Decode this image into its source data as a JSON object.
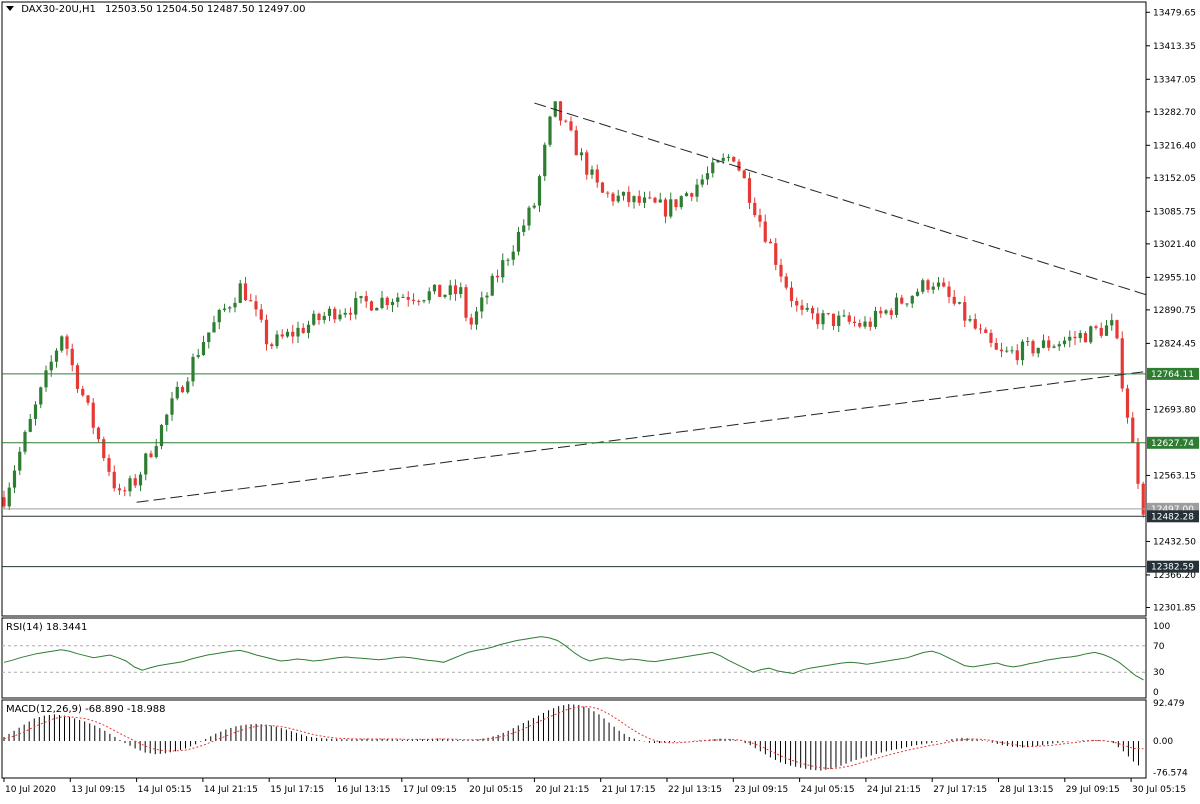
{
  "header": {
    "symbol": "DAX30-20U,H1",
    "ohlc": "12503.50 12504.50 12487.50 12497.00"
  },
  "chart_data": [
    {
      "type": "candlestick",
      "title": "DAX30-20U,H1",
      "subtitle": "12503.50 12504.50 12487.50 12497.00",
      "y_ticks": [
        "13479.65",
        "13413.35",
        "13347.05",
        "13282.70",
        "13216.40",
        "13152.05",
        "13085.75",
        "13021.40",
        "12955.10",
        "12890.75",
        "12824.45",
        "12693.80",
        "12563.15",
        "12432.50",
        "12366.20",
        "12301.85"
      ],
      "ylim": [
        12285,
        13500
      ],
      "x_ticks": [
        "10 Jul 2020",
        "13 Jul 09:15",
        "14 Jul 05:15",
        "14 Jul 21:15",
        "15 Jul 17:15",
        "16 Jul 13:15",
        "17 Jul 09:15",
        "20 Jul 05:15",
        "20 Jul 21:15",
        "21 Jul 17:15",
        "22 Jul 13:15",
        "23 Jul 09:15",
        "24 Jul 05:15",
        "24 Jul 21:15",
        "27 Jul 17:15",
        "28 Jul 13:15",
        "29 Jul 09:15",
        "30 Jul 05:15"
      ],
      "horizontal_levels": [
        {
          "label": "12764.11",
          "value": 12764.11,
          "color": "#2e7d32"
        },
        {
          "label": "12627.74",
          "value": 12627.74,
          "color": "#2e7d32"
        },
        {
          "label": "12497.00",
          "value": 12497.0,
          "color": "#9e9e9e"
        },
        {
          "label": "12482.28",
          "value": 12482.28,
          "color": "#263238"
        },
        {
          "label": "12382.59",
          "value": 12382.59,
          "color": "#263238"
        }
      ],
      "trendlines": [
        {
          "name": "resistance",
          "from": [
            "20 Jul 21:15",
            13300
          ],
          "to": [
            "30 Jul 05:15",
            12930
          ],
          "style": "dashed"
        },
        {
          "name": "support",
          "from": [
            "14 Jul 05:15",
            12510
          ],
          "to": [
            "30 Jul 05:15",
            12765
          ],
          "style": "dashed"
        }
      ],
      "bull_color": "#2e7d32",
      "bear_color": "#e53935",
      "anchors": [
        {
          "x": "10 Jul 2020",
          "close": 12520
        },
        {
          "x": "13 Jul 00:00",
          "close": 12850
        },
        {
          "x": "13 Jul 09:15",
          "close": 12790
        },
        {
          "x": "14 Jul 00:00",
          "close": 12520
        },
        {
          "x": "14 Jul 05:15",
          "close": 12555
        },
        {
          "x": "14 Jul 21:15",
          "close": 12830
        },
        {
          "x": "15 Jul 09:00",
          "close": 12940
        },
        {
          "x": "15 Jul 17:15",
          "close": 12820
        },
        {
          "x": "16 Jul 13:15",
          "close": 12890
        },
        {
          "x": "17 Jul 09:15",
          "close": 12920
        },
        {
          "x": "20 Jul 00:00",
          "close": 12925
        },
        {
          "x": "20 Jul 05:15",
          "close": 12850
        },
        {
          "x": "20 Jul 21:15",
          "close": 13100
        },
        {
          "x": "21 Jul 03:00",
          "close": 13295
        },
        {
          "x": "21 Jul 17:15",
          "close": 13120
        },
        {
          "x": "22 Jul 13:15",
          "close": 13090
        },
        {
          "x": "23 Jul 09:15",
          "close": 13200
        },
        {
          "x": "24 Jul 00:00",
          "close": 12960
        },
        {
          "x": "24 Jul 05:15",
          "close": 12880
        },
        {
          "x": "24 Jul 21:15",
          "close": 12860
        },
        {
          "x": "27 Jul 17:15",
          "close": 12950
        },
        {
          "x": "28 Jul 13:15",
          "close": 12800
        },
        {
          "x": "29 Jul 09:15",
          "close": 12830
        },
        {
          "x": "30 Jul 00:00",
          "close": 12860
        },
        {
          "x": "30 Jul 05:15",
          "close": 12640
        },
        {
          "x": "30 Jul 09:00",
          "close": 12497
        }
      ]
    },
    {
      "type": "line",
      "title": "RSI(14) 18.3441",
      "y_ticks": [
        "100",
        "70",
        "30",
        "0"
      ],
      "ylim": [
        0,
        100
      ],
      "levels": [
        70,
        30
      ],
      "series": [
        {
          "name": "RSI(14)",
          "color": "#2e7d32",
          "values": [
            45,
            48,
            52,
            55,
            58,
            60,
            62,
            64,
            62,
            58,
            55,
            52,
            54,
            56,
            52,
            47,
            38,
            33,
            37,
            40,
            42,
            44,
            46,
            50,
            53,
            56,
            58,
            60,
            62,
            63,
            60,
            56,
            53,
            50,
            47,
            48,
            50,
            49,
            47,
            48,
            50,
            52,
            53,
            52,
            51,
            50,
            49,
            50,
            52,
            53,
            52,
            50,
            48,
            47,
            45,
            50,
            55,
            60,
            63,
            65,
            68,
            72,
            75,
            78,
            80,
            82,
            84,
            82,
            78,
            70,
            60,
            52,
            47,
            50,
            52,
            50,
            48,
            50,
            49,
            47,
            46,
            48,
            50,
            52,
            54,
            56,
            58,
            60,
            55,
            48,
            42,
            36,
            30,
            34,
            36,
            32,
            30,
            28,
            33,
            36,
            38,
            40,
            42,
            44,
            45,
            44,
            42,
            44,
            46,
            48,
            50,
            52,
            56,
            60,
            62,
            58,
            52,
            46,
            40,
            38,
            40,
            42,
            44,
            40,
            38,
            40,
            43,
            45,
            48,
            50,
            52,
            53,
            55,
            58,
            60,
            57,
            52,
            45,
            35,
            25,
            18.3441
          ]
        }
      ]
    },
    {
      "type": "bar",
      "title": "MACD(12,26,9) -68.890 -18.988",
      "y_ticks": [
        "92.479",
        "0.00",
        "-76.574"
      ],
      "ylim": [
        -90,
        100
      ],
      "series": [
        {
          "name": "MACD",
          "color": "#000000",
          "values": [
            10,
            25,
            40,
            55,
            62,
            65,
            62,
            55,
            48,
            38,
            25,
            10,
            -5,
            -18,
            -28,
            -32,
            -30,
            -25,
            -18,
            -8,
            5,
            18,
            28,
            36,
            40,
            42,
            40,
            35,
            28,
            20,
            12,
            8,
            6,
            5,
            4,
            5,
            6,
            6,
            5,
            4,
            3,
            4,
            5,
            6,
            5,
            3,
            2,
            4,
            8,
            15,
            25,
            38,
            50,
            62,
            75,
            85,
            90,
            88,
            80,
            65,
            45,
            25,
            10,
            2,
            -4,
            -5,
            -3,
            -1,
            0,
            2,
            4,
            6,
            5,
            0,
            -10,
            -25,
            -40,
            -52,
            -60,
            -65,
            -70,
            -72,
            -68,
            -60,
            -50,
            -42,
            -35,
            -28,
            -22,
            -18,
            -12,
            -8,
            -4,
            0,
            5,
            8,
            6,
            2,
            -4,
            -10,
            -14,
            -16,
            -14,
            -10,
            -6,
            -3,
            0,
            2,
            3,
            2,
            -5,
            -25,
            -50,
            -68.89
          ]
        },
        {
          "name": "Signal",
          "color": "#e53935",
          "style": "dotted",
          "values": [
            5,
            12,
            22,
            35,
            45,
            55,
            60,
            58,
            55,
            48,
            38,
            25,
            12,
            0,
            -12,
            -20,
            -24,
            -24,
            -22,
            -16,
            -8,
            2,
            12,
            22,
            30,
            36,
            38,
            37,
            33,
            27,
            20,
            14,
            10,
            7,
            6,
            5,
            5,
            5,
            5,
            5,
            4,
            4,
            4,
            5,
            5,
            4,
            3,
            3,
            5,
            9,
            15,
            24,
            35,
            47,
            58,
            68,
            78,
            83,
            84,
            78,
            66,
            50,
            33,
            18,
            6,
            -2,
            -4,
            -4,
            -2,
            0,
            2,
            3,
            4,
            2,
            -3,
            -12,
            -24,
            -36,
            -46,
            -54,
            -60,
            -65,
            -67,
            -65,
            -60,
            -53,
            -46,
            -39,
            -32,
            -26,
            -20,
            -15,
            -10,
            -6,
            -1,
            3,
            5,
            4,
            1,
            -4,
            -8,
            -12,
            -13,
            -12,
            -10,
            -7,
            -4,
            -1,
            1,
            1,
            -2,
            -10,
            -18,
            -18.988
          ]
        }
      ]
    }
  ]
}
